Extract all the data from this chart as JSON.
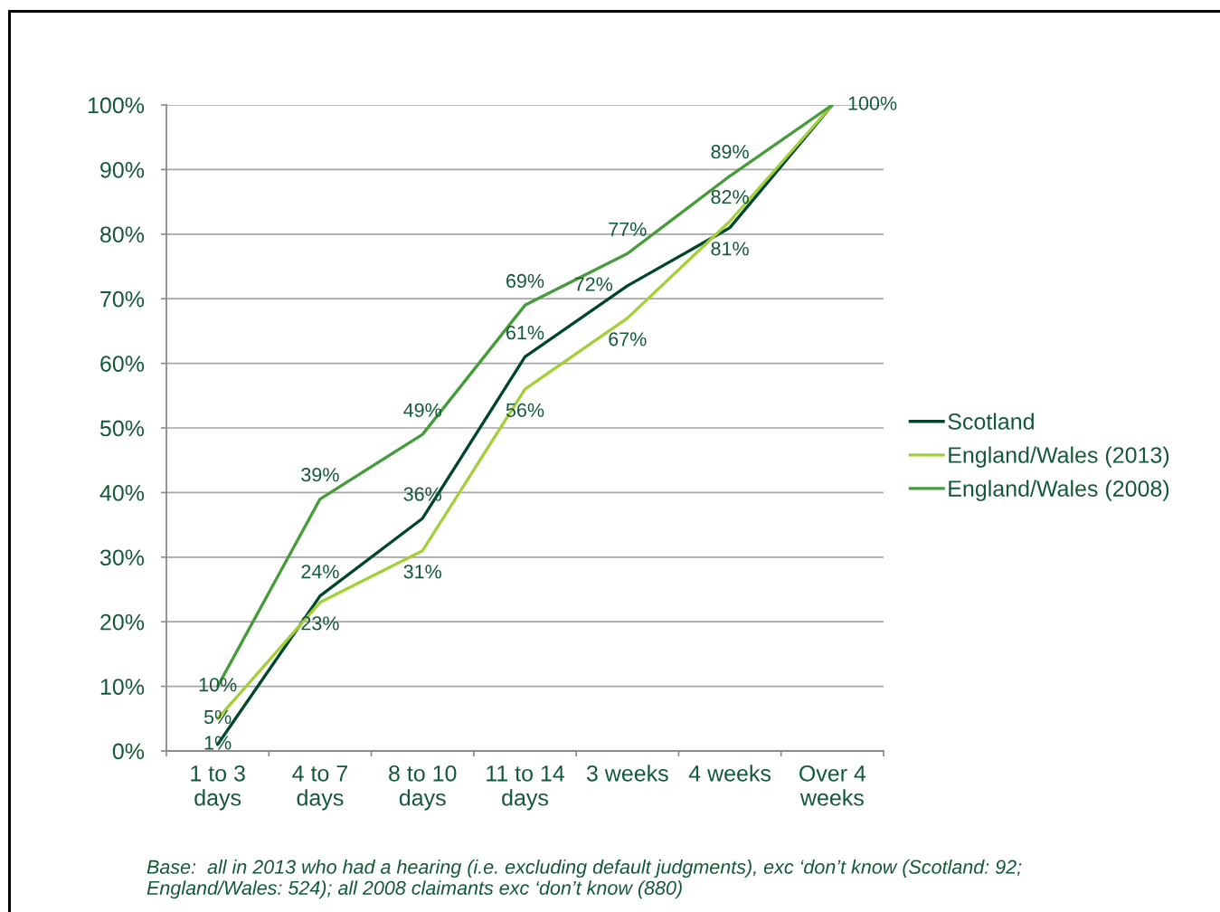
{
  "chart_data": {
    "type": "line",
    "categories": [
      "1 to 3 days",
      "4 to 7 days",
      "8 to 10 days",
      "11 to 14 days",
      "3 weeks",
      "4 weeks",
      "Over 4 weeks"
    ],
    "series": [
      {
        "name": "Scotland",
        "color": "#00472a",
        "values": [
          1,
          24,
          36,
          61,
          72,
          81,
          100
        ],
        "value_labels": [
          "1%",
          "24%",
          "36%",
          "61%",
          "72%",
          "81%",
          null
        ]
      },
      {
        "name": "England/Wales (2013)",
        "color": "#a3cf3a",
        "values": [
          5,
          23,
          31,
          56,
          67,
          82,
          100
        ],
        "value_labels": [
          "5%",
          "23%",
          "31%",
          "56%",
          "67%",
          "82%",
          null
        ]
      },
      {
        "name": "England/Wales (2008)",
        "color": "#469b3b",
        "values": [
          10,
          39,
          49,
          69,
          77,
          89,
          100
        ],
        "value_labels": [
          "10%",
          "39%",
          "49%",
          "69%",
          "77%",
          "89%",
          "100%"
        ]
      }
    ],
    "ylim": [
      0,
      100
    ],
    "yticks": [
      {
        "value": 0,
        "label": "0%"
      },
      {
        "value": 10,
        "label": "10%"
      },
      {
        "value": 20,
        "label": "20%"
      },
      {
        "value": 30,
        "label": "30%"
      },
      {
        "value": 40,
        "label": "40%"
      },
      {
        "value": 50,
        "label": "50%"
      },
      {
        "value": 60,
        "label": "60%"
      },
      {
        "value": 70,
        "label": "70%"
      },
      {
        "value": 80,
        "label": "80%"
      },
      {
        "value": 90,
        "label": "90%"
      },
      {
        "value": 100,
        "label": "100%"
      }
    ],
    "grid": "y",
    "legend": "right",
    "annotations": [
      "Base:  all in 2013 who had a hearing (i.e. excluding default judgments), exc ‘don’t know (Scotland: 92; England/Wales: 524); all 2008 claimants exc ‘don’t know (880)"
    ]
  }
}
